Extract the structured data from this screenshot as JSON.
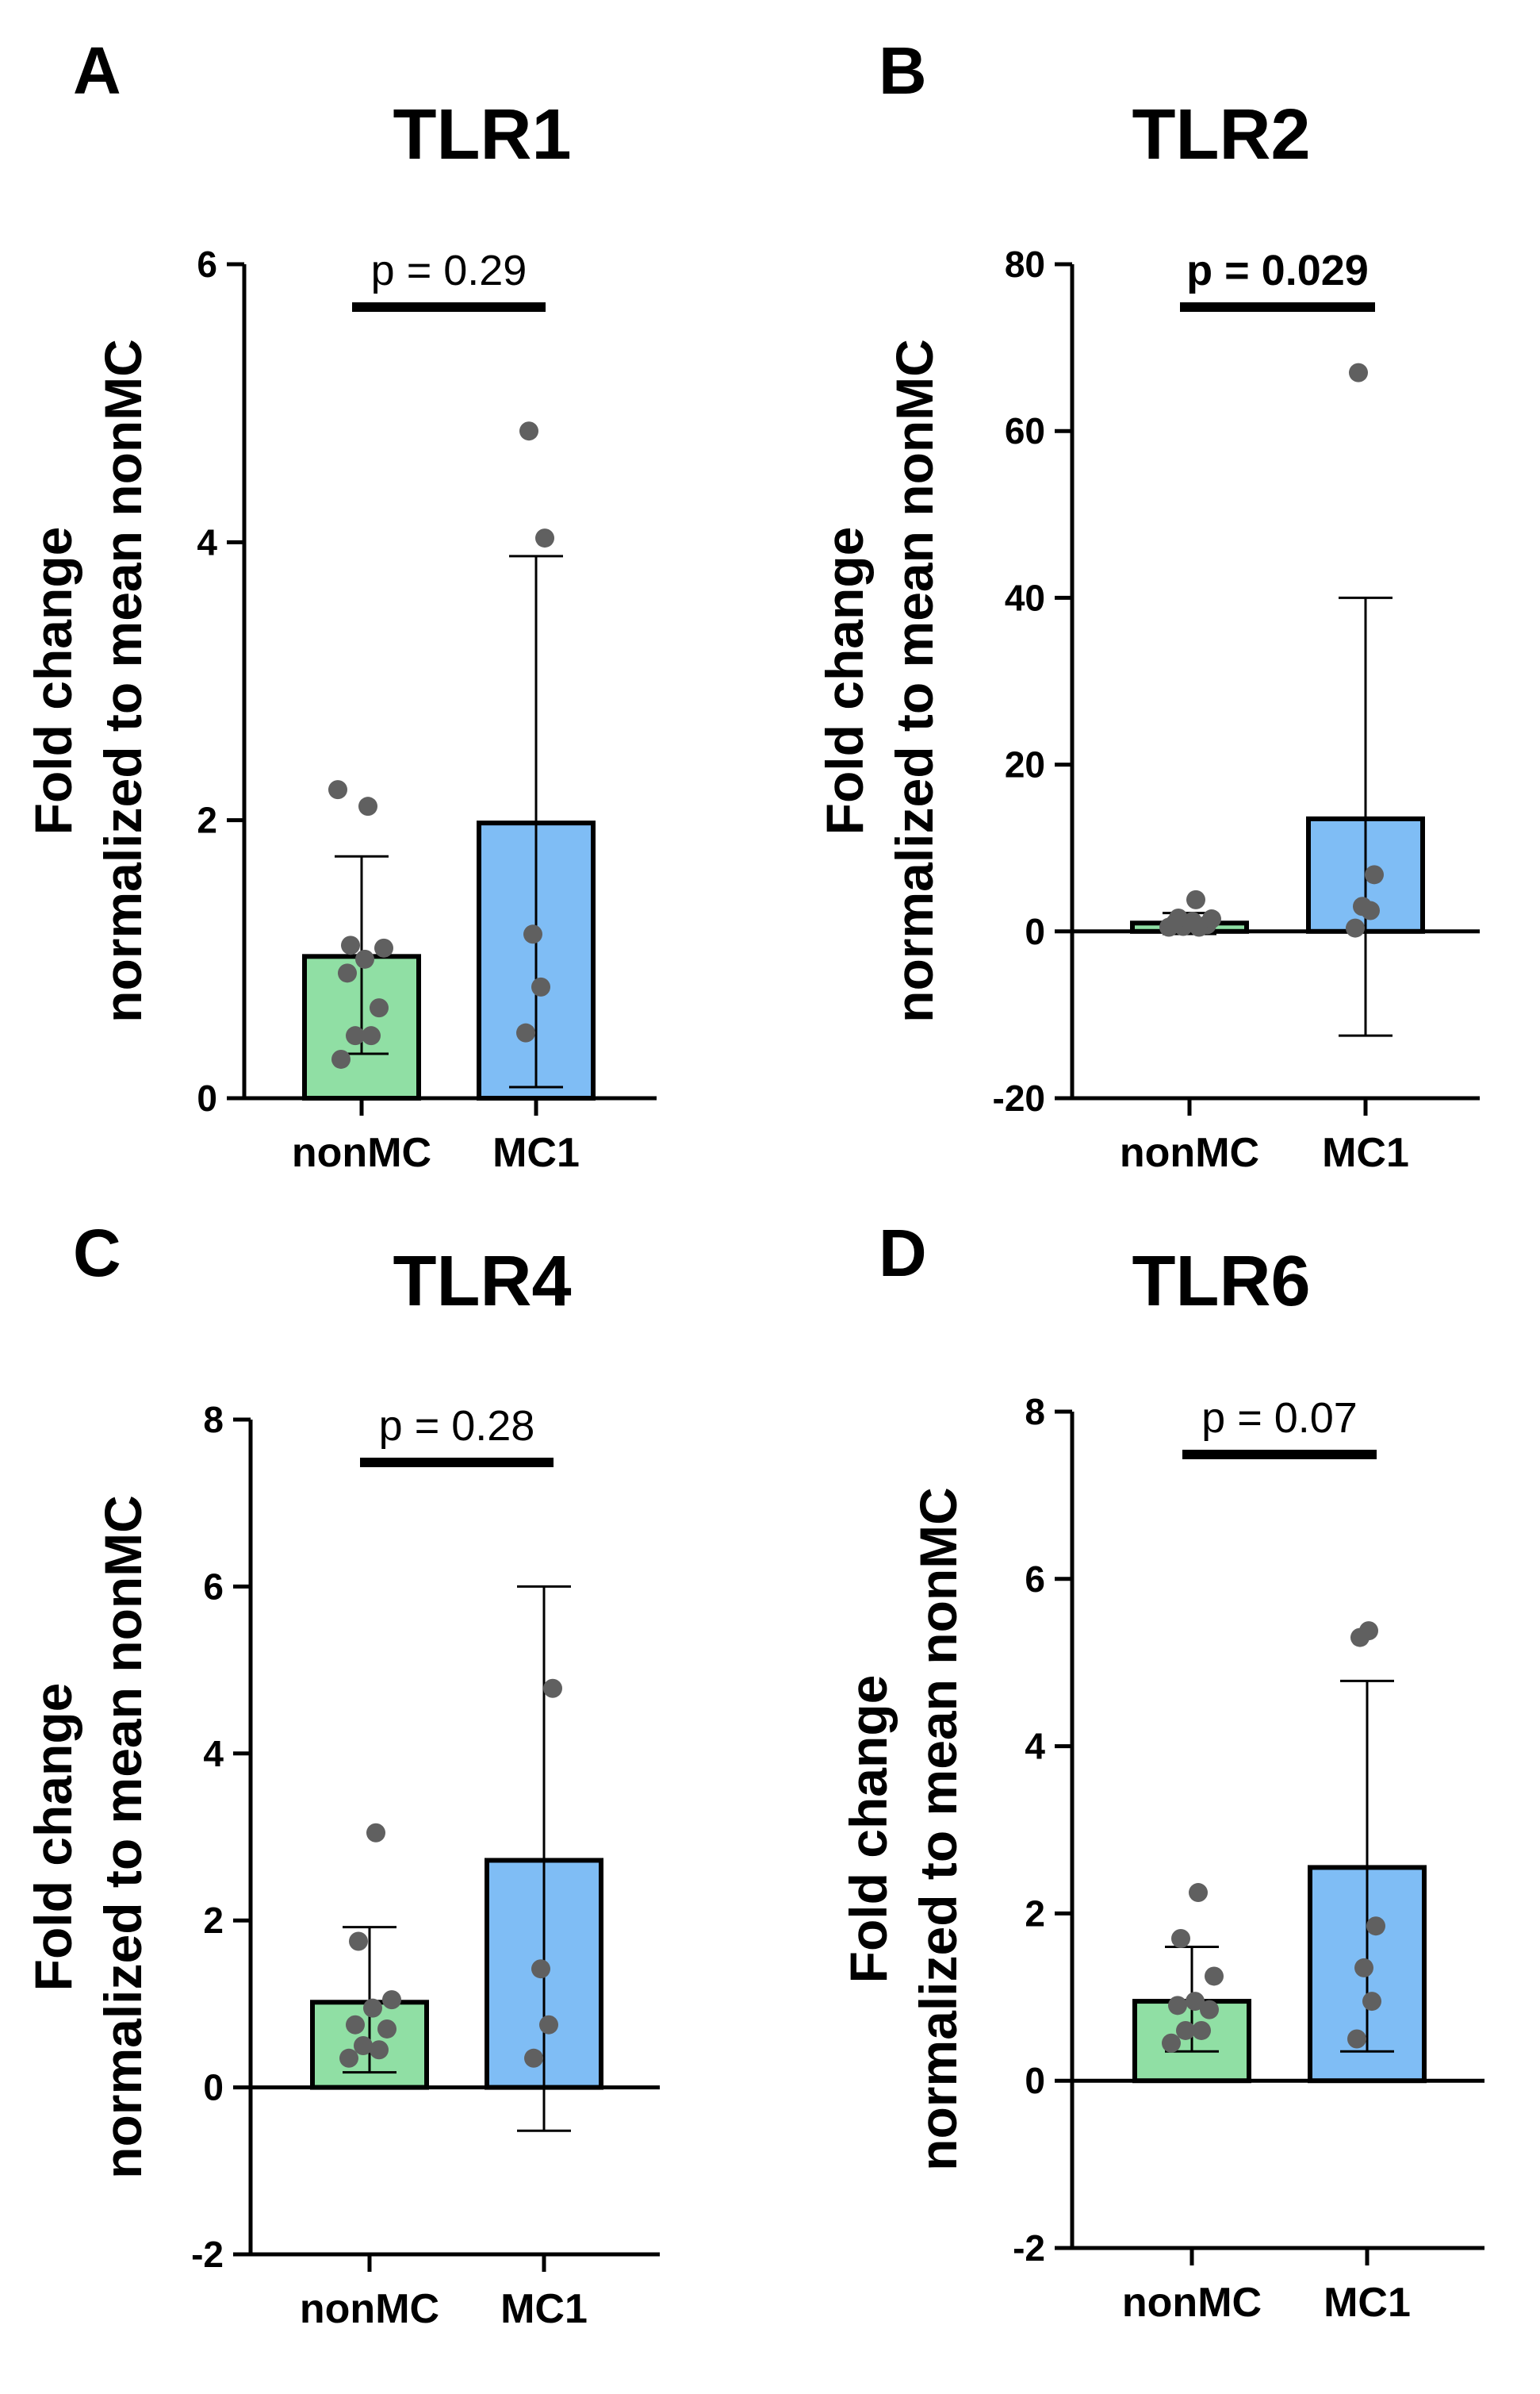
{
  "chart_data": [
    {
      "panel": "A",
      "title": "TLR1",
      "type": "bar",
      "ylabel": [
        "Fold change",
        "normalized to mean nonMC"
      ],
      "ylim": [
        0,
        6
      ],
      "yticks": [
        0,
        2,
        4,
        6
      ],
      "categories": [
        "nonMC",
        "MC1"
      ],
      "colors": [
        "#90dfa4",
        "#7fbdf5"
      ],
      "means": [
        1.02,
        1.98
      ],
      "error_low": [
        0.32,
        0.08
      ],
      "error_high": [
        1.74,
        3.9
      ],
      "points": [
        [
          0.28,
          0.45,
          0.45,
          0.65,
          0.9,
          1.0,
          1.08,
          1.1,
          2.1,
          2.22
        ],
        [
          0.47,
          0.8,
          1.18,
          4.03,
          4.8
        ]
      ],
      "pvalue": "p = 0.29",
      "pvalue_bold": false
    },
    {
      "panel": "B",
      "title": "TLR2",
      "type": "bar",
      "ylabel": [
        "Fold change",
        "normalized to mean nonMC"
      ],
      "ylim": [
        -20,
        80
      ],
      "yticks": [
        -20,
        0,
        20,
        40,
        60,
        80
      ],
      "categories": [
        "nonMC",
        "MC1"
      ],
      "colors": [
        "#90dfa4",
        "#7fbdf5"
      ],
      "means": [
        1.0,
        13.5
      ],
      "error_low": [
        -0.3,
        -12.5
      ],
      "error_high": [
        2.2,
        40
      ],
      "points": [
        [
          0.5,
          0.5,
          0.6,
          0.8,
          1.0,
          1.2,
          1.5,
          1.6,
          3.8
        ],
        [
          0.4,
          2.5,
          3.0,
          6.8,
          67
        ]
      ],
      "pvalue": "p = 0.029",
      "pvalue_bold": true
    },
    {
      "panel": "C",
      "title": "TLR4",
      "type": "bar",
      "ylabel": [
        "Fold change",
        "normalized to mean nonMC"
      ],
      "ylim": [
        -2,
        8
      ],
      "yticks": [
        -2,
        0,
        2,
        4,
        6,
        8
      ],
      "categories": [
        "nonMC",
        "MC1"
      ],
      "colors": [
        "#90dfa4",
        "#7fbdf5"
      ],
      "means": [
        1.02,
        2.72
      ],
      "error_low": [
        0.18,
        -0.52
      ],
      "error_high": [
        1.92,
        6.0
      ],
      "points": [
        [
          0.35,
          0.45,
          0.5,
          0.7,
          0.75,
          0.95,
          1.05,
          1.75,
          3.05
        ],
        [
          0.35,
          0.75,
          1.42,
          4.78
        ]
      ],
      "pvalue": "p = 0.28",
      "pvalue_bold": false
    },
    {
      "panel": "D",
      "title": "TLR6",
      "type": "bar",
      "ylabel": [
        "Fold change",
        "normalized to mean nonMC"
      ],
      "ylim": [
        -2,
        8
      ],
      "yticks": [
        -2,
        0,
        2,
        4,
        6,
        8
      ],
      "categories": [
        "nonMC",
        "MC1"
      ],
      "colors": [
        "#90dfa4",
        "#7fbdf5"
      ],
      "means": [
        0.95,
        2.55
      ],
      "error_low": [
        0.35,
        0.35
      ],
      "error_high": [
        1.6,
        4.78
      ],
      "points": [
        [
          0.45,
          0.6,
          0.6,
          0.85,
          0.9,
          0.95,
          1.25,
          1.7,
          2.25
        ],
        [
          0.5,
          0.95,
          1.35,
          1.85,
          5.3,
          5.38
        ]
      ],
      "pvalue": "p = 0.07",
      "pvalue_bold": false
    }
  ]
}
